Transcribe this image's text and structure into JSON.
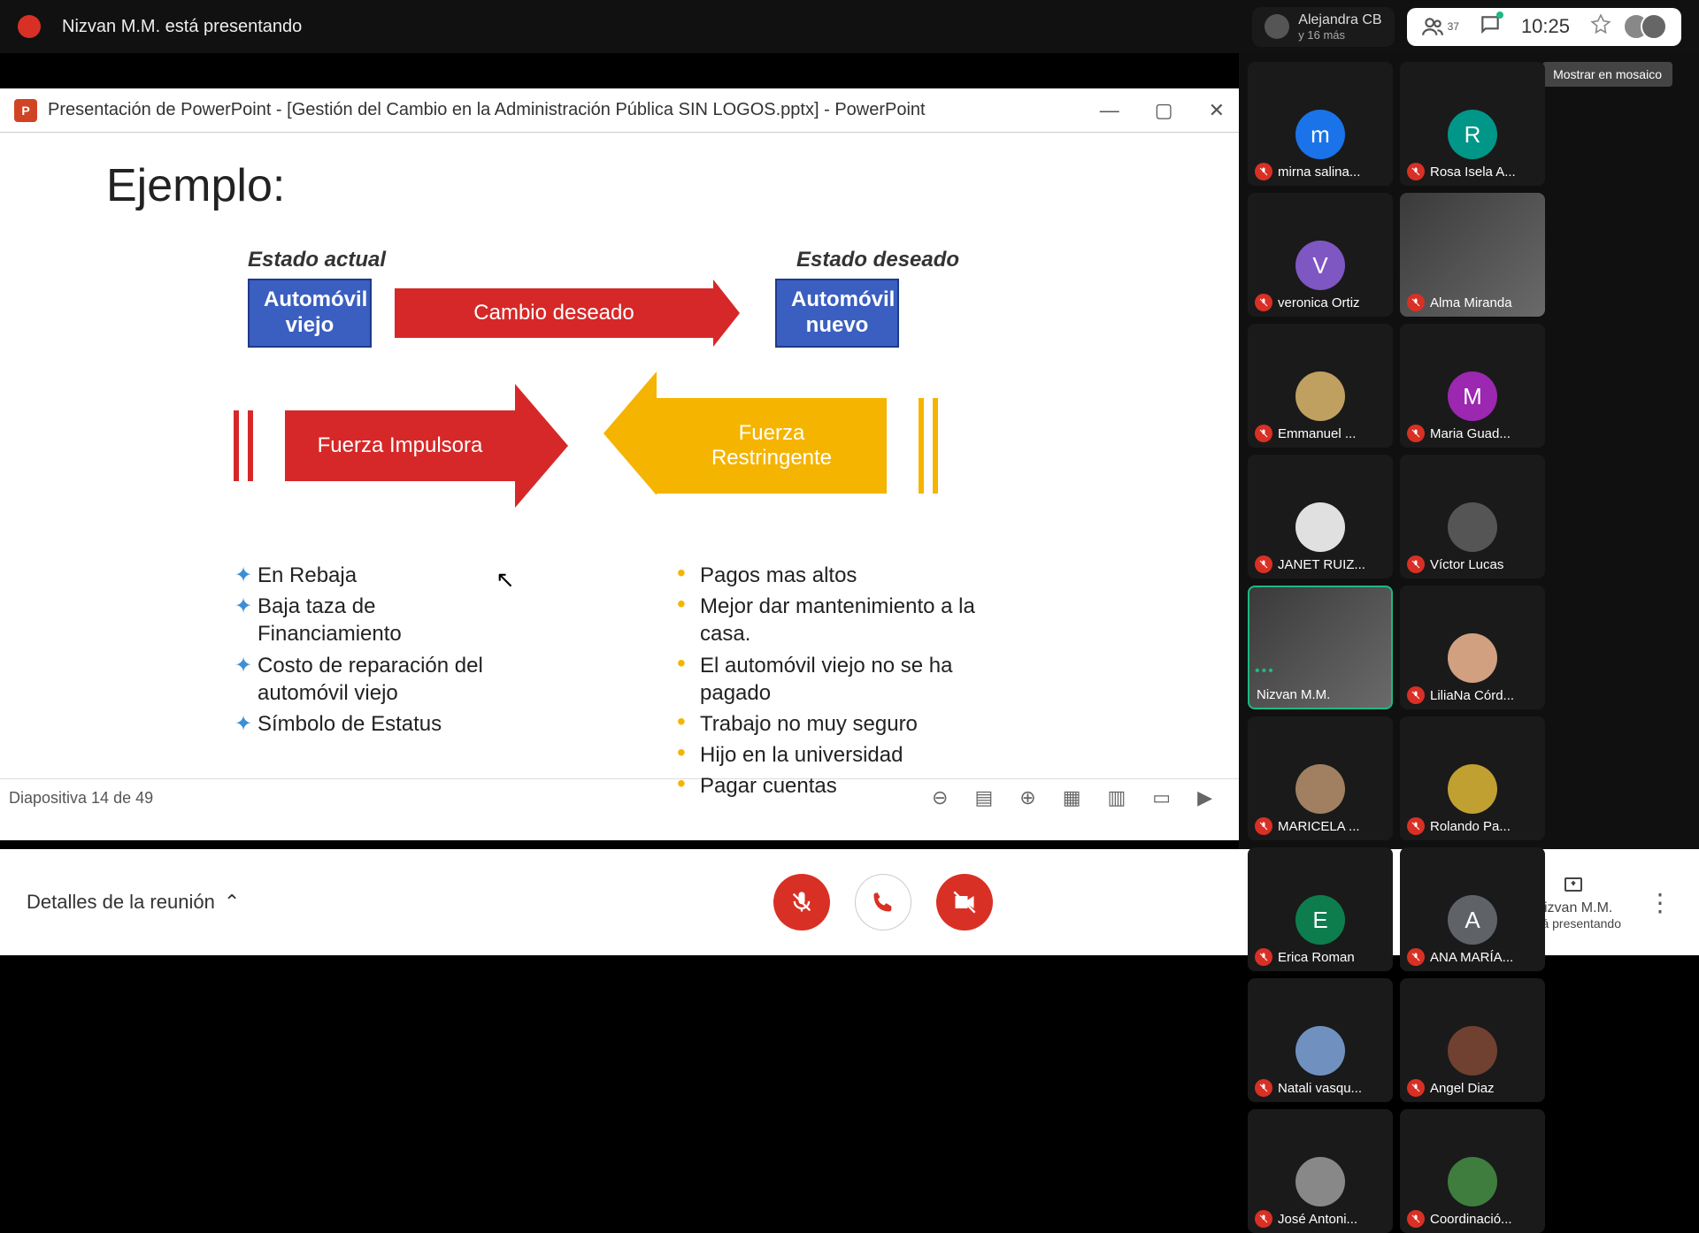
{
  "topbar": {
    "presenter_line": "Nizvan M.M. está presentando",
    "pill_name": "Alejandra CB",
    "pill_more": "y 16 más",
    "participants_icon_count": "37",
    "time": "10:25",
    "tooltip": "Mostrar en mosaico"
  },
  "ppt": {
    "title": "Presentación de PowerPoint - [Gestión del Cambio en la Administración Pública SIN LOGOS.pptx] - PowerPoint",
    "icon_letter": "P",
    "win_min": "—",
    "win_max": "▢",
    "win_close": "✕",
    "slide_footer": "Diapositiva 14 de 49"
  },
  "slide": {
    "title": "Ejemplo:",
    "estado_actual": "Estado actual",
    "estado_deseado": "Estado deseado",
    "box_viejo": "Automóvil\nviejo",
    "box_nuevo": "Automóvil\nnuevo",
    "cambio": "Cambio deseado",
    "impulsora": "Fuerza Impulsora",
    "restringente": "Fuerza Restringente",
    "bullets_left": [
      "En Rebaja",
      "Baja taza de Financiamiento",
      "Costo de reparación del automóvil viejo",
      "Símbolo de Estatus"
    ],
    "bullets_right": [
      "Pagos mas altos",
      "Mejor dar mantenimiento a la casa.",
      "El automóvil viejo no se ha pagado",
      "Trabajo no muy seguro",
      "Hijo en la universidad",
      "Pagar cuentas"
    ],
    "colors": {
      "bluebox_bg": "#3b5fc0",
      "red": "#d62828",
      "orange": "#f5b400"
    }
  },
  "participants": [
    {
      "name": "mirna salina...",
      "initial": "m",
      "color": "#1a73e8",
      "muted": true,
      "video": false
    },
    {
      "name": "Rosa Isela A...",
      "initial": "R",
      "color": "#009688",
      "muted": true,
      "video": false
    },
    {
      "name": "veronica Ortiz",
      "initial": "V",
      "color": "#7e57c2",
      "muted": true,
      "video": false
    },
    {
      "name": "Alma Miranda",
      "initial": "",
      "color": "",
      "muted": true,
      "video": true
    },
    {
      "name": "Emmanuel ...",
      "initial": "",
      "color": "#c0a060",
      "muted": true,
      "video": false,
      "img": true
    },
    {
      "name": "Maria Guad...",
      "initial": "M",
      "color": "#9c27b0",
      "muted": true,
      "video": false
    },
    {
      "name": "JANET RUIZ...",
      "initial": "",
      "color": "#e0e0e0",
      "muted": true,
      "video": false,
      "img": true
    },
    {
      "name": "Víctor Lucas",
      "initial": "",
      "color": "#555",
      "muted": true,
      "video": false,
      "img": true
    },
    {
      "name": "Nizvan M.M.",
      "initial": "",
      "color": "",
      "muted": false,
      "video": true,
      "speaking": true
    },
    {
      "name": "LiliaNa Córd...",
      "initial": "",
      "color": "#d0a080",
      "muted": true,
      "video": false,
      "img": true
    },
    {
      "name": "MARICELA ...",
      "initial": "",
      "color": "#a08060",
      "muted": true,
      "video": false,
      "img": true
    },
    {
      "name": "Rolando Pa...",
      "initial": "",
      "color": "#c0a030",
      "muted": true,
      "video": false,
      "img": true
    },
    {
      "name": "Erica Roman",
      "initial": "E",
      "color": "#0d7d4d",
      "muted": true,
      "video": false
    },
    {
      "name": "ANA MARÍA...",
      "initial": "A",
      "color": "#5f6368",
      "muted": true,
      "video": false
    },
    {
      "name": "Natali vasqu...",
      "initial": "",
      "color": "#7090c0",
      "muted": true,
      "video": false,
      "img": true
    },
    {
      "name": "Angel Diaz",
      "initial": "",
      "color": "#704030",
      "muted": true,
      "video": false,
      "img": true
    },
    {
      "name": "José Antoni...",
      "initial": "",
      "color": "#888",
      "muted": true,
      "video": false,
      "img": true
    },
    {
      "name": "Coordinació...",
      "initial": "",
      "color": "#3e7d3e",
      "muted": true,
      "video": false,
      "img": true
    }
  ],
  "bottom": {
    "details": "Detalles de la reunión",
    "present_name": "Nizvan M.M.",
    "present_sub": "está presentando"
  }
}
